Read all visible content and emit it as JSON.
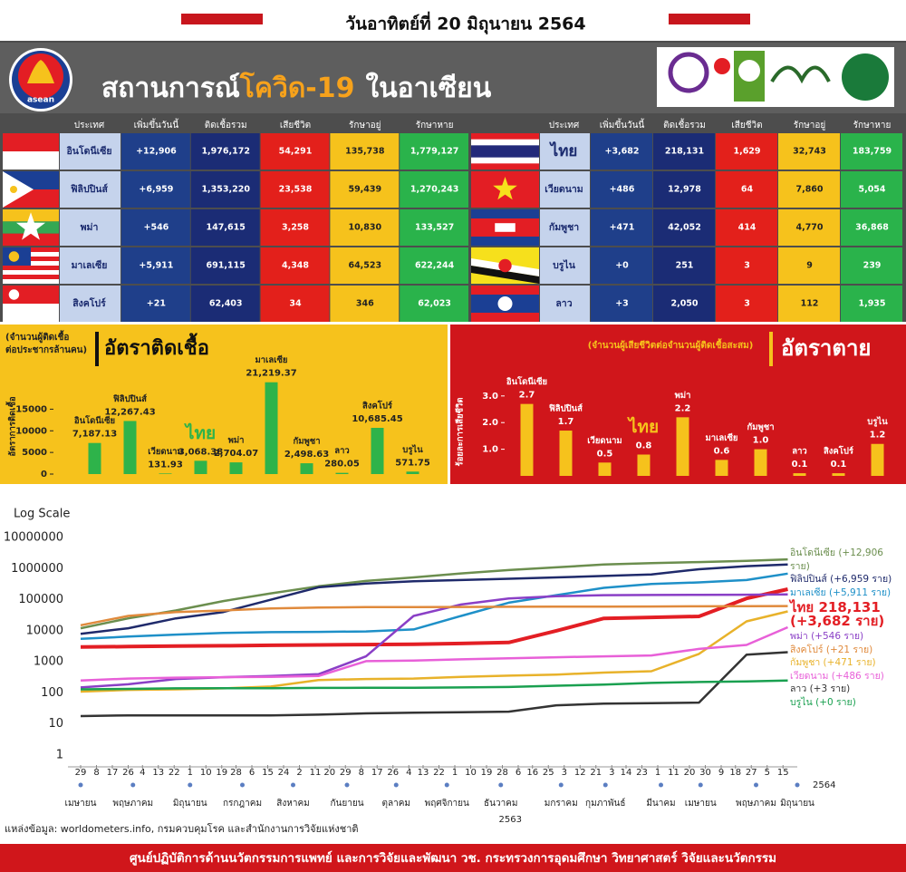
{
  "header": {
    "date": "วันอาทิตย์ที่ 20 มิถุนายน 2564",
    "title_part1": "สถานการณ์",
    "title_highlight": "โควิด-19",
    "title_part2": "ในอาเซียน",
    "logo_text": "asean"
  },
  "tables": [
    {
      "columns": [
        "ประเทศ",
        "เพิ่มขึ้นวันนี้",
        "ติดเชื้อรวม",
        "เสียชีวิต",
        "รักษาอยู่",
        "รักษาหาย"
      ],
      "rows": [
        [
          "อินโดนีเซีย",
          "+12,906",
          "1,976,172",
          "54,291",
          "135,738",
          "1,779,127"
        ],
        [
          "ฟิลิปปินส์",
          "+6,959",
          "1,353,220",
          "23,538",
          "59,439",
          "1,270,243"
        ],
        [
          "พม่า",
          "+546",
          "147,615",
          "3,258",
          "10,830",
          "133,527"
        ],
        [
          "มาเลเซีย",
          "+5,911",
          "691,115",
          "4,348",
          "64,523",
          "622,244"
        ],
        [
          "สิงคโปร์",
          "+21",
          "62,403",
          "34",
          "346",
          "62,023"
        ]
      ]
    },
    {
      "columns": [
        "ประเทศ",
        "เพิ่มขึ้นวันนี้",
        "ติดเชื้อรวม",
        "เสียชีวิต",
        "รักษาอยู่",
        "รักษาหาย"
      ],
      "highlight_row": 0,
      "rows": [
        [
          "ไทย",
          "+3,682",
          "218,131",
          "1,629",
          "32,743",
          "183,759"
        ],
        [
          "เวียดนาม",
          "+486",
          "12,978",
          "64",
          "7,860",
          "5,054"
        ],
        [
          "กัมพูชา",
          "+471",
          "42,052",
          "414",
          "4,770",
          "36,868"
        ],
        [
          "บรูไน",
          "+0",
          "251",
          "3",
          "9",
          "239"
        ],
        [
          "ลาว",
          "+3",
          "2,050",
          "3",
          "112",
          "1,935"
        ]
      ]
    }
  ],
  "chart_data": [
    {
      "type": "bar",
      "title": "อัตราติดเชื้อ",
      "subtitle": [
        "(จำนวนผู้ติดเชื้อ",
        "ต่อประชากรล้านคน)"
      ],
      "y_label": "อัตราการติดเชื้อ",
      "categories": [
        "อินโดนีเซีย",
        "ฟิลิปปินส์",
        "เวียดนาม",
        "ไทย",
        "พม่า",
        "มาเลเซีย",
        "กัมพูชา",
        "ลาว",
        "สิงคโปร์",
        "บรูไน"
      ],
      "values": [
        7187.13,
        12267.43,
        131.93,
        3068.38,
        2704.07,
        21219.37,
        2498.63,
        280.05,
        10685.45,
        571.75
      ],
      "value_labels": [
        "7,187.13",
        "12,267.43",
        "131.93",
        "3,068.38",
        "2,704.07",
        "21,219.37",
        "2,498.63",
        "280.05",
        "10,685.45",
        "571.75"
      ],
      "color": "#2eb34a",
      "highlight_index": 3,
      "ylim": [
        0,
        22000
      ],
      "yticks": [
        0,
        5000,
        10000,
        15000
      ]
    },
    {
      "type": "bar",
      "title": "อัตราตาย",
      "subtitle": [
        "(จำนวนผู้เสียชีวิตต่อจำนวนผู้ติดเชื้อสะสม)"
      ],
      "y_label": "ร้อยละการเสียชีวิต",
      "categories": [
        "อินโดนีเซีย",
        "ฟิลิปปินส์",
        "เวียดนาม",
        "ไทย",
        "พม่า",
        "มาเลเซีย",
        "กัมพูชา",
        "ลาว",
        "สิงคโปร์",
        "บรูไน"
      ],
      "values": [
        2.7,
        1.7,
        0.5,
        0.8,
        2.2,
        0.6,
        1.0,
        0.1,
        0.1,
        1.2
      ],
      "value_labels": [
        "2.7",
        "1.7",
        "0.5",
        "0.8",
        "2.2",
        "0.6",
        "1.0",
        "0.1",
        "0.1",
        "1.2"
      ],
      "color": "#f6c21c",
      "highlight_index": 3,
      "ylim": [
        0,
        3.3
      ],
      "yticks": [
        {
          "value": 1,
          "label": "1.0"
        },
        {
          "value": 2,
          "label": "2.0"
        },
        {
          "value": 3,
          "label": "3.0"
        }
      ]
    },
    {
      "type": "line",
      "title": "Log Scale",
      "log_scale": true,
      "grid": false,
      "highlight_index": 3,
      "x": [
        0,
        30,
        60,
        90,
        120,
        150,
        180,
        210,
        240,
        270,
        300,
        330,
        360,
        390,
        420,
        446
      ],
      "xlim": [
        -8,
        452
      ],
      "xticks": [
        {
          "value": 0,
          "label": "29"
        },
        {
          "value": 10,
          "label": "8"
        },
        {
          "value": 20,
          "label": "17"
        },
        {
          "value": 30,
          "label": "26"
        },
        {
          "value": 39,
          "label": "4"
        },
        {
          "value": 49,
          "label": "13"
        },
        {
          "value": 59,
          "label": "22"
        },
        {
          "value": 69,
          "label": "1"
        },
        {
          "value": 79,
          "label": "10"
        },
        {
          "value": 89,
          "label": "19"
        },
        {
          "value": 98,
          "label": "28"
        },
        {
          "value": 108,
          "label": "6"
        },
        {
          "value": 118,
          "label": "15"
        },
        {
          "value": 128,
          "label": "24"
        },
        {
          "value": 138,
          "label": "2"
        },
        {
          "value": 148,
          "label": "11"
        },
        {
          "value": 157,
          "label": "20"
        },
        {
          "value": 167,
          "label": "29"
        },
        {
          "value": 177,
          "label": "8"
        },
        {
          "value": 187,
          "label": "17"
        },
        {
          "value": 197,
          "label": "26"
        },
        {
          "value": 207,
          "label": "4"
        },
        {
          "value": 216,
          "label": "13"
        },
        {
          "value": 226,
          "label": "22"
        },
        {
          "value": 236,
          "label": "1"
        },
        {
          "value": 246,
          "label": "10"
        },
        {
          "value": 256,
          "label": "19"
        },
        {
          "value": 266,
          "label": "28"
        },
        {
          "value": 276,
          "label": "6"
        },
        {
          "value": 285,
          "label": "16"
        },
        {
          "value": 295,
          "label": "25"
        },
        {
          "value": 305,
          "label": "3"
        },
        {
          "value": 315,
          "label": "12"
        },
        {
          "value": 325,
          "label": "21"
        },
        {
          "value": 335,
          "label": "3"
        },
        {
          "value": 344,
          "label": "14"
        },
        {
          "value": 354,
          "label": "23"
        },
        {
          "value": 364,
          "label": "1"
        },
        {
          "value": 374,
          "label": "11"
        },
        {
          "value": 384,
          "label": "20"
        },
        {
          "value": 394,
          "label": "30"
        },
        {
          "value": 404,
          "label": "9"
        },
        {
          "value": 413,
          "label": "18"
        },
        {
          "value": 423,
          "label": "27"
        },
        {
          "value": 433,
          "label": "5"
        },
        {
          "value": 443,
          "label": "15"
        }
      ],
      "month_ticks": [
        {
          "value": 0,
          "label": "เมษายน"
        },
        {
          "value": 33,
          "label": "พฤษภาคม"
        },
        {
          "value": 69,
          "label": "มิถุนายน"
        },
        {
          "value": 102,
          "label": "กรกฎาคม"
        },
        {
          "value": 134,
          "label": "สิงหาคม"
        },
        {
          "value": 168,
          "label": "กันยายน"
        },
        {
          "value": 199,
          "label": "ตุลาคม"
        },
        {
          "value": 231,
          "label": "พฤศจิกายน"
        },
        {
          "value": 265,
          "label": "ธันวาคม"
        },
        {
          "value": 303,
          "label": "มกราคม"
        },
        {
          "value": 331,
          "label": "กุมภาพันธ์"
        },
        {
          "value": 366,
          "label": "มีนาคม"
        },
        {
          "value": 391,
          "label": "เมษายน"
        },
        {
          "value": 426,
          "label": "พฤษภาคม"
        },
        {
          "value": 452,
          "label": "มิถุนายน"
        }
      ],
      "year_ticks": [
        {
          "value": 271,
          "label": "2563"
        },
        {
          "value": 469,
          "label": "2564"
        }
      ],
      "ylim": [
        1,
        10000000
      ],
      "yticks": [
        1,
        10,
        100,
        1000,
        10000,
        100000,
        1000000,
        10000000
      ],
      "series": [
        {
          "name": "อินโดนีเซีย (+12,906 ราย)",
          "color": "#6b8e4e",
          "values": [
            12000,
            25000,
            45000,
            90000,
            160000,
            270000,
            400000,
            520000,
            700000,
            900000,
            1100000,
            1350000,
            1500000,
            1620000,
            1780000,
            1976172
          ]
        },
        {
          "name": "ฟิลิปปินส์ (+6,959 ราย)",
          "color": "#1f2a6b",
          "values": [
            8000,
            12000,
            25000,
            40000,
            100000,
            250000,
            330000,
            390000,
            430000,
            470000,
            520000,
            580000,
            650000,
            950000,
            1200000,
            1353220
          ]
        },
        {
          "name": "มาเลเซีย (+5,911 ราย)",
          "color": "#1e90c8",
          "values": [
            5500,
            6500,
            7500,
            8500,
            9000,
            9200,
            9500,
            11000,
            30000,
            80000,
            140000,
            240000,
            320000,
            360000,
            430000,
            691115
          ]
        },
        {
          "name": "ไทย 218,131 (+3,682 ราย)",
          "color": "#e31e24",
          "values": [
            3000,
            3100,
            3200,
            3300,
            3400,
            3500,
            3600,
            3700,
            3900,
            4200,
            10000,
            25000,
            27000,
            29000,
            110000,
            218131
          ]
        },
        {
          "name": "พม่า (+546 ราย)",
          "color": "#8a3fc6",
          "values": [
            150,
            190,
            280,
            320,
            350,
            400,
            1500,
            30000,
            70000,
            110000,
            130000,
            140000,
            142000,
            143000,
            144000,
            147615
          ]
        },
        {
          "name": "สิงคโปร์ (+21 ราย)",
          "color": "#e08a3c",
          "values": [
            15000,
            30000,
            40000,
            45000,
            52000,
            56000,
            57500,
            58000,
            58500,
            59000,
            59500,
            60000,
            60500,
            61000,
            61500,
            62403
          ]
        },
        {
          "name": "กัมพูชา (+471 ราย)",
          "color": "#e8b22a",
          "values": [
            110,
            125,
            130,
            140,
            160,
            260,
            280,
            290,
            330,
            360,
            390,
            450,
            500,
            1800,
            20000,
            42052
          ]
        },
        {
          "name": "เวียดนาม (+486 ราย)",
          "color": "#e860d8",
          "values": [
            250,
            290,
            310,
            320,
            330,
            350,
            1050,
            1100,
            1200,
            1300,
            1400,
            1500,
            1600,
            2600,
            3500,
            12978
          ]
        },
        {
          "name": "ลาว (+3 ราย)",
          "color": "#333333",
          "values": [
            18,
            19,
            19,
            19,
            19,
            20,
            22,
            23,
            24,
            25,
            40,
            45,
            47,
            49,
            1700,
            2050
          ]
        },
        {
          "name": "บรูไน (+0 ราย)",
          "color": "#1aa050",
          "values": [
            130,
            135,
            140,
            141,
            142,
            145,
            146,
            147,
            150,
            155,
            170,
            185,
            210,
            225,
            235,
            251
          ]
        }
      ]
    }
  ],
  "source": "แหล่งข้อมูล: worldometers.info, กรมควบคุมโรค และสำนักงานการวิจัยแห่งชาติ",
  "footer": "ศูนย์ปฏิบัติการด้านนวัตกรรมการแพทย์ และการวิจัยและพัฒนา วช.  กระทรวงการอุดมศึกษา วิทยาศาสตร์ วิจัยและนวัตกรรม"
}
